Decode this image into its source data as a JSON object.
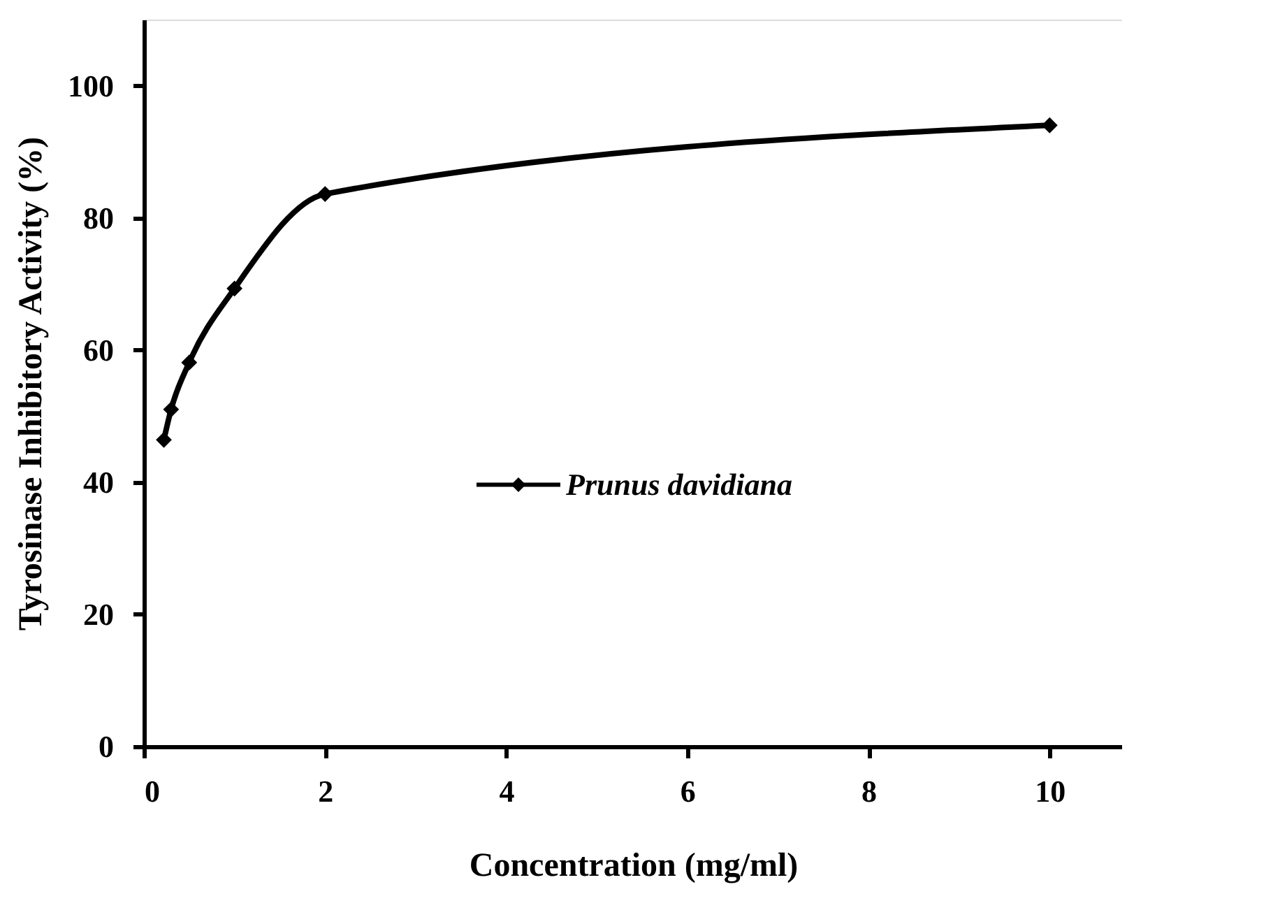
{
  "chart_data": {
    "type": "line",
    "xlabel": "Concentration (mg/ml)",
    "ylabel": "Tyrosinase Inhibitory Activity (%)",
    "x": [
      0.22,
      0.3,
      0.5,
      1,
      2,
      10
    ],
    "series": [
      {
        "name": "Prunus davidiana",
        "color": "#000000",
        "values": [
          46.4,
          51.0,
          58.1,
          69.3,
          83.6,
          94.0
        ]
      }
    ],
    "xlim": [
      0,
      10.8
    ],
    "xticks": [
      0,
      2,
      4,
      6,
      8,
      10
    ],
    "ylim": [
      0,
      110
    ],
    "yticks": [
      0,
      20,
      40,
      60,
      80,
      100
    ],
    "grid": false,
    "legend": "right",
    "marker": "diamond",
    "line_style": "solid"
  }
}
